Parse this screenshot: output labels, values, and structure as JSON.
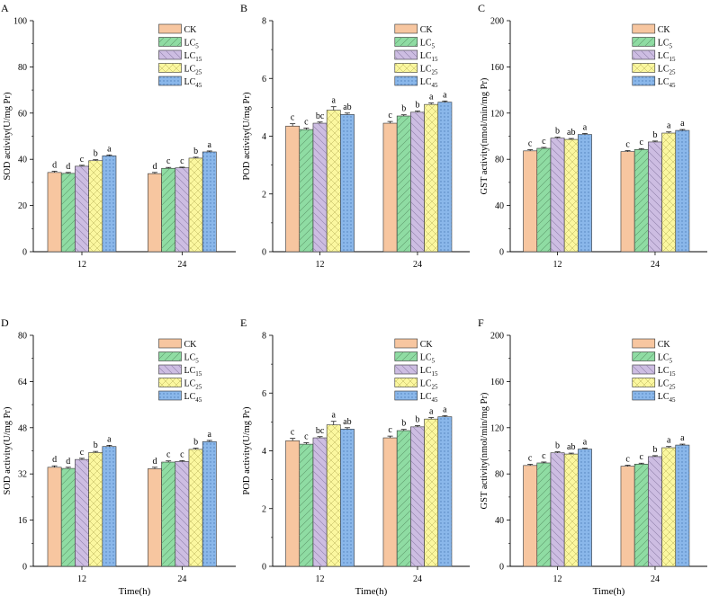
{
  "colors": {
    "CK": "#f7c6a0",
    "LC5": "#8fdca3",
    "LC15": "#cdbde2",
    "LC25": "#fbf79f",
    "LC45": "#8ab7ea"
  },
  "legend": [
    {
      "key": "CK",
      "base": "CK",
      "sub": ""
    },
    {
      "key": "LC5",
      "base": "LC",
      "sub": "5"
    },
    {
      "key": "LC15",
      "base": "LC",
      "sub": "15"
    },
    {
      "key": "LC25",
      "base": "LC",
      "sub": "25"
    },
    {
      "key": "LC45",
      "base": "LC",
      "sub": "45"
    }
  ],
  "chart_data": [
    {
      "panel": "A",
      "type": "bar",
      "ylabel": "SOD activity(U/mg Pr)",
      "xlabel": "",
      "ylim": [
        0,
        100
      ],
      "yticks": [
        0,
        20,
        40,
        60,
        80,
        100
      ],
      "categories": [
        "12",
        "24"
      ],
      "series": [
        {
          "name": "CK",
          "values": [
            34.3,
            33.8
          ],
          "err": [
            0.5,
            0.5
          ],
          "letters": [
            "d",
            "d"
          ]
        },
        {
          "name": "LC5",
          "values": [
            33.9,
            36.1
          ],
          "err": [
            0.4,
            0.4
          ],
          "letters": [
            "d",
            "c"
          ]
        },
        {
          "name": "LC15",
          "values": [
            37.0,
            36.3
          ],
          "err": [
            0.4,
            0.3
          ],
          "letters": [
            "c",
            "c"
          ]
        },
        {
          "name": "LC25",
          "values": [
            39.4,
            40.5
          ],
          "err": [
            0.4,
            0.4
          ],
          "letters": [
            "b",
            "b"
          ]
        },
        {
          "name": "LC45",
          "values": [
            41.5,
            43.2
          ],
          "err": [
            0.4,
            0.4
          ],
          "letters": [
            "a",
            "a"
          ]
        }
      ]
    },
    {
      "panel": "B",
      "type": "bar",
      "ylabel": "POD activity(U/mg Pr)",
      "xlabel": "",
      "ylim": [
        0,
        8
      ],
      "yticks": [
        0,
        2,
        4,
        6,
        8
      ],
      "categories": [
        "12",
        "24"
      ],
      "series": [
        {
          "name": "CK",
          "values": [
            4.35,
            4.45
          ],
          "err": [
            0.08,
            0.06
          ],
          "letters": [
            "c",
            "c"
          ]
        },
        {
          "name": "LC5",
          "values": [
            4.23,
            4.7
          ],
          "err": [
            0.05,
            0.04
          ],
          "letters": [
            "c",
            "b"
          ]
        },
        {
          "name": "LC15",
          "values": [
            4.45,
            4.83
          ],
          "err": [
            0.04,
            0.04
          ],
          "letters": [
            "bc",
            "b"
          ]
        },
        {
          "name": "LC25",
          "values": [
            4.9,
            5.1
          ],
          "err": [
            0.12,
            0.05
          ],
          "letters": [
            "a",
            "a"
          ]
        },
        {
          "name": "LC45",
          "values": [
            4.75,
            5.18
          ],
          "err": [
            0.05,
            0.04
          ],
          "letters": [
            "ab",
            "a"
          ]
        }
      ]
    },
    {
      "panel": "C",
      "type": "bar",
      "ylabel": "GST activity(nmol/min/mg Pr)",
      "xlabel": "",
      "ylim": [
        0,
        200
      ],
      "yticks": [
        0,
        40,
        80,
        120,
        160,
        200
      ],
      "categories": [
        "12",
        "24"
      ],
      "series": [
        {
          "name": "CK",
          "values": [
            87.3,
            86.7
          ],
          "err": [
            1.0,
            0.8
          ],
          "letters": [
            "c",
            "c"
          ]
        },
        {
          "name": "LC5",
          "values": [
            89.5,
            88.5
          ],
          "err": [
            0.8,
            0.8
          ],
          "letters": [
            "c",
            "c"
          ]
        },
        {
          "name": "LC15",
          "values": [
            98.3,
            95.0
          ],
          "err": [
            0.8,
            0.8
          ],
          "letters": [
            "b",
            "b"
          ]
        },
        {
          "name": "LC25",
          "values": [
            97.2,
            102.7
          ],
          "err": [
            0.8,
            1.0
          ],
          "letters": [
            "ab",
            "a"
          ]
        },
        {
          "name": "LC45",
          "values": [
            101.5,
            105.0
          ],
          "err": [
            0.8,
            0.8
          ],
          "letters": [
            "a",
            "a"
          ]
        }
      ]
    },
    {
      "panel": "D",
      "type": "bar",
      "ylabel": "SOD activity(U/mg Pr)",
      "xlabel": "Time(h)",
      "ylim": [
        0,
        80
      ],
      "yticks": [
        0,
        16,
        32,
        48,
        64,
        80
      ],
      "categories": [
        "12",
        "24"
      ],
      "series": [
        {
          "name": "CK",
          "values": [
            34.3,
            33.8
          ],
          "err": [
            0.5,
            0.5
          ],
          "letters": [
            "d",
            "d"
          ]
        },
        {
          "name": "LC5",
          "values": [
            33.9,
            36.1
          ],
          "err": [
            0.4,
            0.4
          ],
          "letters": [
            "d",
            "c"
          ]
        },
        {
          "name": "LC15",
          "values": [
            37.0,
            36.3
          ],
          "err": [
            0.4,
            0.3
          ],
          "letters": [
            "c",
            "c"
          ]
        },
        {
          "name": "LC25",
          "values": [
            39.4,
            40.5
          ],
          "err": [
            0.4,
            0.4
          ],
          "letters": [
            "b",
            "b"
          ]
        },
        {
          "name": "LC45",
          "values": [
            41.5,
            43.2
          ],
          "err": [
            0.4,
            0.4
          ],
          "letters": [
            "a",
            "a"
          ]
        }
      ]
    },
    {
      "panel": "E",
      "type": "bar",
      "ylabel": "POD activity(U/mg Pr)",
      "xlabel": "Time(h)",
      "ylim": [
        0,
        8
      ],
      "yticks": [
        0,
        2,
        4,
        6,
        8
      ],
      "categories": [
        "12",
        "24"
      ],
      "series": [
        {
          "name": "CK",
          "values": [
            4.35,
            4.45
          ],
          "err": [
            0.08,
            0.06
          ],
          "letters": [
            "c",
            "c"
          ]
        },
        {
          "name": "LC5",
          "values": [
            4.23,
            4.7
          ],
          "err": [
            0.05,
            0.04
          ],
          "letters": [
            "c",
            "b"
          ]
        },
        {
          "name": "LC15",
          "values": [
            4.45,
            4.83
          ],
          "err": [
            0.04,
            0.04
          ],
          "letters": [
            "bc",
            "b"
          ]
        },
        {
          "name": "LC25",
          "values": [
            4.9,
            5.1
          ],
          "err": [
            0.12,
            0.05
          ],
          "letters": [
            "a",
            "a"
          ]
        },
        {
          "name": "LC45",
          "values": [
            4.75,
            5.18
          ],
          "err": [
            0.05,
            0.04
          ],
          "letters": [
            "ab",
            "a"
          ]
        }
      ]
    },
    {
      "panel": "F",
      "type": "bar",
      "ylabel": "GST activity(nmol/min/mg Pr)",
      "xlabel": "Time(h)",
      "ylim": [
        0,
        200
      ],
      "yticks": [
        0,
        40,
        80,
        120,
        160,
        200
      ],
      "categories": [
        "12",
        "24"
      ],
      "series": [
        {
          "name": "CK",
          "values": [
            87.3,
            86.7
          ],
          "err": [
            1.0,
            0.8
          ],
          "letters": [
            "c",
            "c"
          ]
        },
        {
          "name": "LC5",
          "values": [
            89.5,
            88.5
          ],
          "err": [
            0.8,
            0.8
          ],
          "letters": [
            "c",
            "c"
          ]
        },
        {
          "name": "LC15",
          "values": [
            98.3,
            95.0
          ],
          "err": [
            0.8,
            0.8
          ],
          "letters": [
            "b",
            "b"
          ]
        },
        {
          "name": "LC25",
          "values": [
            97.2,
            102.7
          ],
          "err": [
            0.8,
            1.0
          ],
          "letters": [
            "ab",
            "a"
          ]
        },
        {
          "name": "LC45",
          "values": [
            101.5,
            105.0
          ],
          "err": [
            0.8,
            0.8
          ],
          "letters": [
            "a",
            "a"
          ]
        }
      ]
    }
  ]
}
